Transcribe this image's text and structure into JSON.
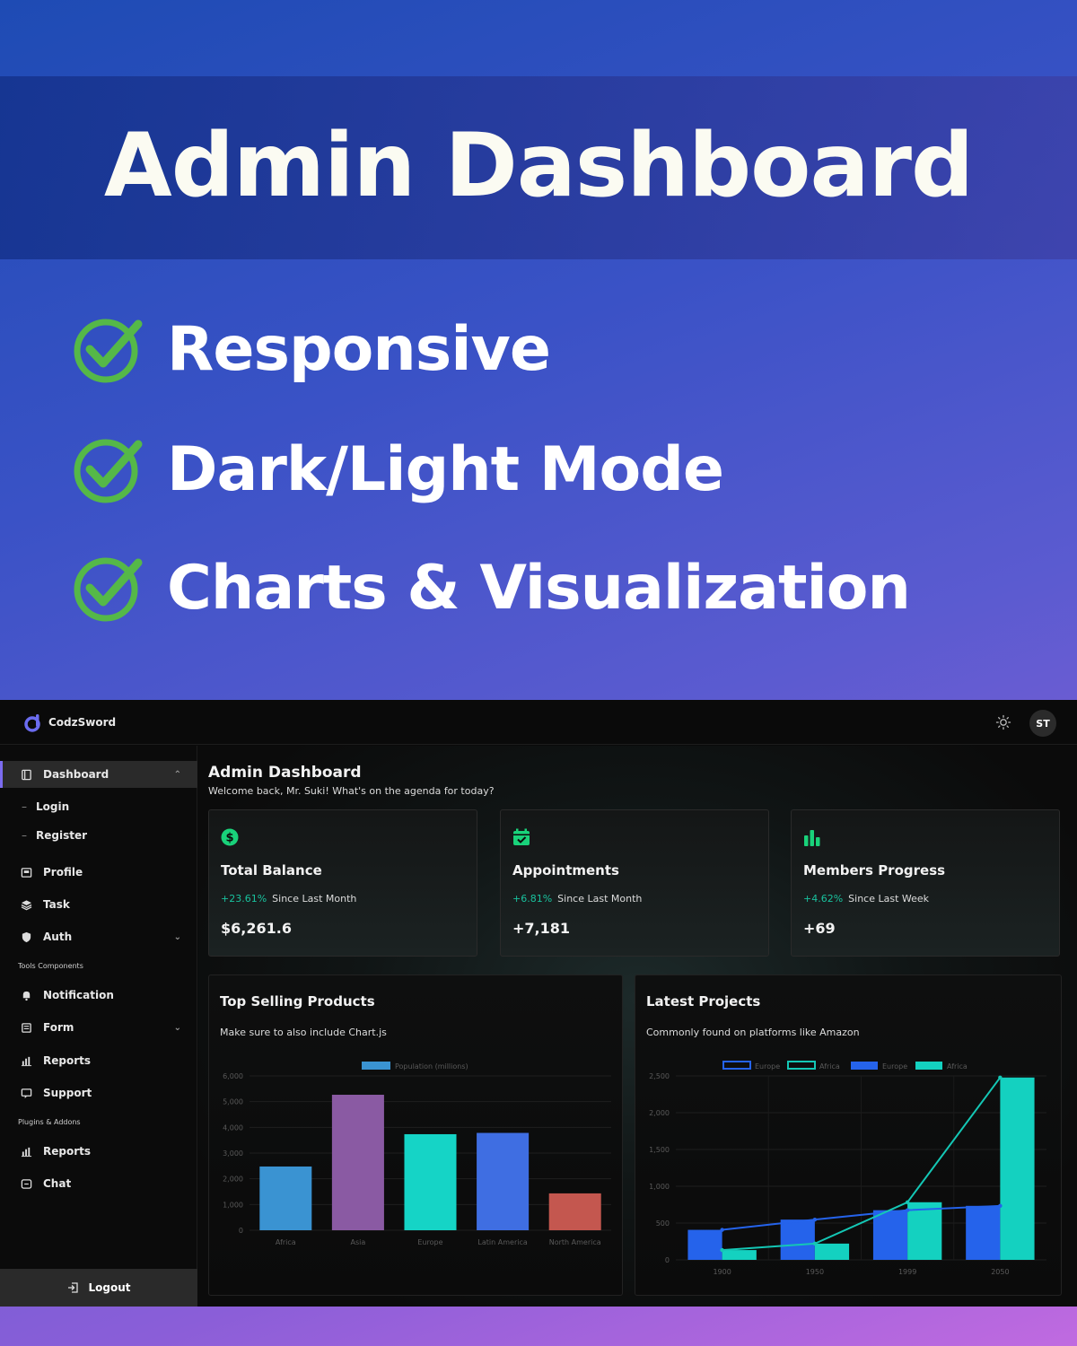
{
  "hero": {
    "title": "Admin Dashboard",
    "features": [
      "Responsive",
      "Dark/Light Mode",
      "Charts & Visualization"
    ]
  },
  "app": {
    "brand": "CodzSword",
    "avatar_initials": "ST"
  },
  "sidebar": {
    "dashboard": "Dashboard",
    "sub_items": [
      "Login",
      "Register"
    ],
    "profile": "Profile",
    "task": "Task",
    "auth": "Auth",
    "section_tools": "Tools Components",
    "notification": "Notification",
    "form": "Form",
    "reports": "Reports",
    "support": "Support",
    "section_plugins": "Plugins & Addons",
    "reports2": "Reports",
    "chat": "Chat",
    "logout": "Logout"
  },
  "main": {
    "title": "Admin Dashboard",
    "subtitle": "Welcome back, Mr. Suki! What's on the agenda for today?",
    "cards": [
      {
        "title": "Total Balance",
        "change": "+23.61%",
        "period": "Since Last Month",
        "value": "$6,261.6",
        "icon": "dollar-icon"
      },
      {
        "title": "Appointments",
        "change": "+6.81%",
        "period": "Since Last Month",
        "value": "+7,181",
        "icon": "calendar-icon"
      },
      {
        "title": "Members Progress",
        "change": "+4.62%",
        "period": "Since Last Week",
        "value": "+69",
        "icon": "bar-chart-icon"
      }
    ],
    "panels": [
      {
        "title": "Top Selling Products",
        "subtitle": "Make sure to also include Chart.js"
      },
      {
        "title": "Latest Projects",
        "subtitle": "Commonly found on platforms like Amazon"
      }
    ]
  },
  "colors": {
    "accent": "#19c29e",
    "active_border": "#7c6cf0"
  },
  "chart_data": [
    {
      "type": "bar",
      "categories": [
        "Africa",
        "Asia",
        "Europe",
        "Latin America",
        "North America"
      ],
      "series": [
        {
          "name": "Population (millions)",
          "values": [
            2478,
            5267,
            3734,
            3784,
            1433
          ]
        }
      ],
      "bar_colors": [
        "#3a93d2",
        "#8a5aa3",
        "#15d4c6",
        "#3f6ee2",
        "#c4574f"
      ],
      "yticks": [
        "0",
        "1,000",
        "2,000",
        "3,000",
        "4,000",
        "5,000",
        "6,000"
      ],
      "ylim": [
        0,
        6000
      ]
    },
    {
      "type": "bar",
      "categories": [
        "1900",
        "1950",
        "1999",
        "2050"
      ],
      "series": [
        {
          "name": "Europe",
          "kind": "line",
          "values": [
            408,
            547,
            675,
            734
          ],
          "color": "#2563eb"
        },
        {
          "name": "Africa",
          "kind": "line",
          "values": [
            133,
            221,
            783,
            2478
          ],
          "color": "#14c7b5"
        },
        {
          "name": "Europe",
          "kind": "bar",
          "values": [
            408,
            547,
            675,
            734
          ],
          "color": "#2563eb"
        },
        {
          "name": "Africa",
          "kind": "bar",
          "values": [
            133,
            221,
            783,
            2478
          ],
          "color": "#14d1c0"
        }
      ],
      "yticks": [
        "0",
        "500",
        "1,000",
        "1,500",
        "2,000",
        "2,500"
      ],
      "ylim": [
        0,
        2500
      ]
    }
  ]
}
